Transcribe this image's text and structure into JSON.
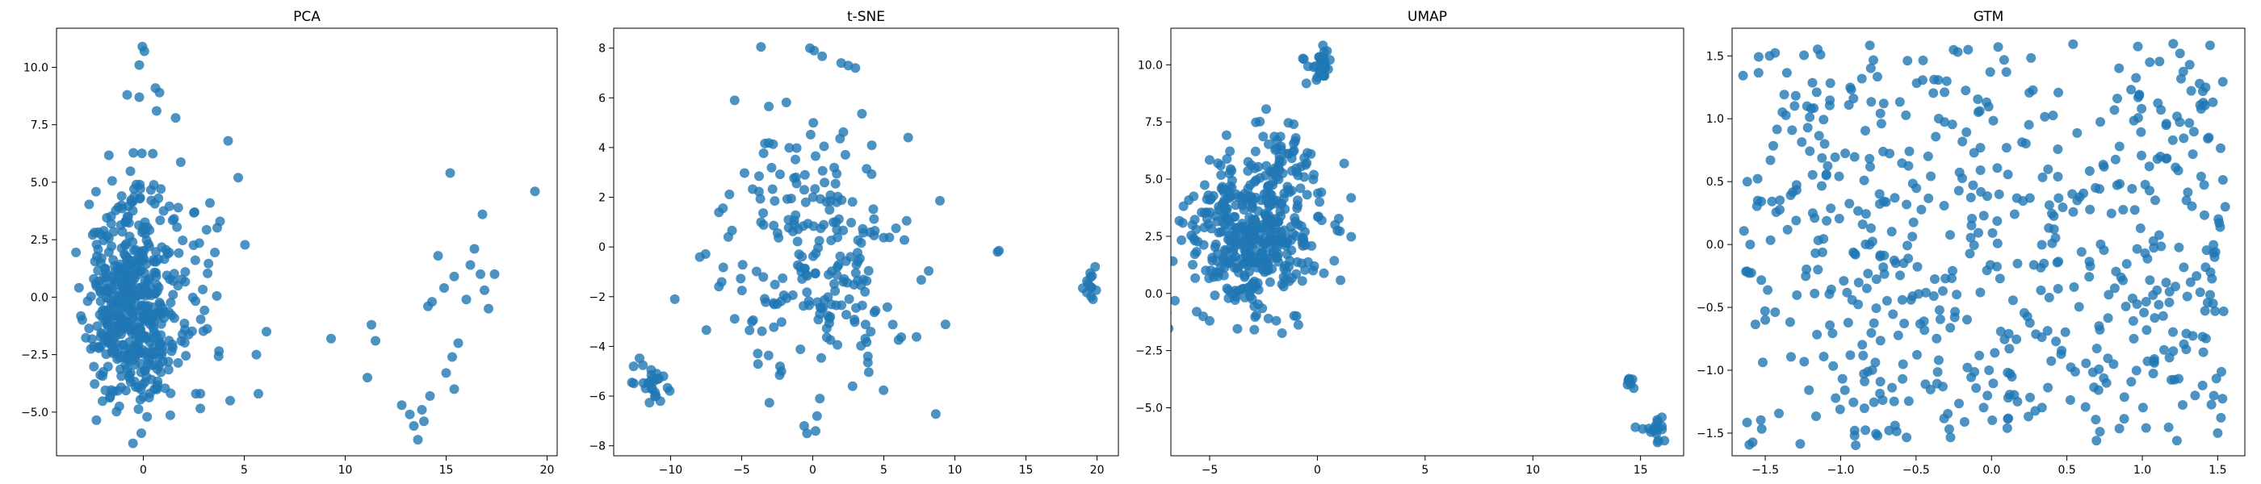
{
  "figure": {
    "point_color": "#1f77b4"
  },
  "chart_data": [
    {
      "type": "scatter",
      "title": "PCA",
      "xlabel": "",
      "ylabel": "",
      "xlim": [
        -4.3,
        20.5
      ],
      "ylim": [
        -6.9,
        11.7
      ],
      "xticks": [
        0,
        5,
        10,
        15,
        20
      ],
      "yticks": [
        -5.0,
        -2.5,
        0.0,
        2.5,
        5.0,
        7.5,
        10.0
      ],
      "xtick_labels": [
        "0",
        "5",
        "10",
        "15",
        "20"
      ],
      "ytick_labels": [
        "−5.0",
        "−2.5",
        "0.0",
        "2.5",
        "5.0",
        "7.5",
        "10.0"
      ],
      "grid": false,
      "clusters": [
        {
          "seed": 11,
          "n": 220,
          "cx": -1.2,
          "cy": -0.8,
          "sx": 0.8,
          "sy": 1.6
        },
        {
          "seed": 12,
          "n": 150,
          "cx": -0.4,
          "cy": 2.0,
          "sx": 1.0,
          "sy": 1.8
        },
        {
          "seed": 13,
          "n": 120,
          "cx": 0.0,
          "cy": -2.2,
          "sx": 1.1,
          "sy": 1.5
        },
        {
          "seed": 14,
          "n": 40,
          "cx": 2.2,
          "cy": 0.8,
          "sx": 1.3,
          "sy": 2.2
        }
      ],
      "points": [
        [
          -0.05,
          10.9
        ],
        [
          0.05,
          10.7
        ],
        [
          -0.2,
          10.1
        ],
        [
          0.6,
          9.1
        ],
        [
          0.8,
          8.9
        ],
        [
          -0.8,
          8.8
        ],
        [
          -0.2,
          8.7
        ],
        [
          1.6,
          7.8
        ],
        [
          4.2,
          6.8
        ],
        [
          4.7,
          5.2
        ],
        [
          3.3,
          4.1
        ],
        [
          3.8,
          3.3
        ],
        [
          6.1,
          -1.5
        ],
        [
          5.6,
          -2.5
        ],
        [
          5.7,
          -4.2
        ],
        [
          4.3,
          -4.5
        ],
        [
          2.6,
          -4.2
        ],
        [
          9.3,
          -1.8
        ],
        [
          11.3,
          -1.2
        ],
        [
          11.5,
          -1.9
        ],
        [
          11.1,
          -3.5
        ],
        [
          12.8,
          -4.7
        ],
        [
          13.2,
          -5.1
        ],
        [
          13.4,
          -5.6
        ],
        [
          13.6,
          -6.2
        ],
        [
          13.9,
          -5.4
        ],
        [
          14.2,
          -4.3
        ],
        [
          13.8,
          -4.9
        ],
        [
          14.1,
          -0.4
        ],
        [
          14.3,
          -0.2
        ],
        [
          14.6,
          1.8
        ],
        [
          14.9,
          0.4
        ],
        [
          15.2,
          5.4
        ],
        [
          15.4,
          0.9
        ],
        [
          15.6,
          -2.0
        ],
        [
          15.3,
          -2.6
        ],
        [
          15.0,
          -3.3
        ],
        [
          15.4,
          -4.0
        ],
        [
          16.0,
          -0.1
        ],
        [
          16.2,
          1.4
        ],
        [
          16.4,
          2.1
        ],
        [
          16.7,
          1.0
        ],
        [
          16.8,
          3.6
        ],
        [
          16.9,
          0.3
        ],
        [
          17.1,
          -0.5
        ],
        [
          17.4,
          1.0
        ],
        [
          19.4,
          4.6
        ]
      ]
    },
    {
      "type": "scatter",
      "title": "t-SNE",
      "xlabel": "",
      "ylabel": "",
      "xlim": [
        -14.0,
        21.5
      ],
      "ylim": [
        -8.4,
        8.8
      ],
      "xticks": [
        -10,
        -5,
        0,
        5,
        10,
        15,
        20
      ],
      "yticks": [
        -8,
        -6,
        -4,
        -2,
        0,
        2,
        4,
        6,
        8
      ],
      "xtick_labels": [
        "−10",
        "−5",
        "0",
        "5",
        "10",
        "15",
        "20"
      ],
      "ytick_labels": [
        "−8",
        "−6",
        "−4",
        "−2",
        "0",
        "2",
        "4",
        "6",
        "8"
      ],
      "grid": false,
      "clusters": [
        {
          "seed": 21,
          "n": 180,
          "cx": 0.0,
          "cy": 0.4,
          "sx": 3.5,
          "sy": 2.9
        },
        {
          "seed": 22,
          "n": 50,
          "cx": 1.5,
          "cy": -1.8,
          "sx": 2.5,
          "sy": 1.4
        },
        {
          "seed": 23,
          "n": 24,
          "cx": -11.6,
          "cy": -5.5,
          "sx": 0.7,
          "sy": 0.5
        },
        {
          "seed": 24,
          "n": 14,
          "cx": 19.5,
          "cy": -1.4,
          "sx": 0.25,
          "sy": 0.45
        }
      ],
      "points": [
        [
          -0.2,
          8.0
        ],
        [
          0.1,
          7.9
        ],
        [
          2.0,
          7.4
        ],
        [
          2.5,
          7.3
        ],
        [
          3.0,
          7.2
        ],
        [
          -0.6,
          -7.2
        ],
        [
          -0.4,
          -7.5
        ],
        [
          0.2,
          -7.4
        ],
        [
          0.3,
          -6.8
        ],
        [
          0.5,
          -6.1
        ],
        [
          2.8,
          -5.6
        ],
        [
          -2.3,
          -4.8
        ],
        [
          -2.2,
          -5.0
        ],
        [
          -9.7,
          -2.1
        ],
        [
          13.0,
          -0.2
        ],
        [
          13.1,
          -0.15
        ],
        [
          -12.6,
          -4.8
        ],
        [
          -10.5,
          -5.2
        ]
      ]
    },
    {
      "type": "scatter",
      "title": "UMAP",
      "xlabel": "",
      "ylabel": "",
      "xlim": [
        -6.8,
        17.0
      ],
      "ylim": [
        -7.1,
        11.6
      ],
      "xticks": [
        -5,
        0,
        5,
        10,
        15
      ],
      "yticks": [
        -5.0,
        -2.5,
        0.0,
        2.5,
        5.0,
        7.5,
        10.0
      ],
      "xtick_labels": [
        "−5",
        "0",
        "5",
        "10",
        "15"
      ],
      "ytick_labels": [
        "−5.0",
        "−2.5",
        "0.0",
        "2.5",
        "5.0",
        "7.5",
        "10.0"
      ],
      "grid": false,
      "clusters": [
        {
          "seed": 31,
          "n": 420,
          "cx": -2.9,
          "cy": 2.6,
          "sx": 1.55,
          "sy": 1.75
        },
        {
          "seed": 32,
          "n": 40,
          "cx": -1.4,
          "cy": 5.8,
          "sx": 0.8,
          "sy": 0.7
        },
        {
          "seed": 33,
          "n": 30,
          "cx": 0.1,
          "cy": 10.0,
          "sx": 0.35,
          "sy": 0.35
        },
        {
          "seed": 34,
          "n": 8,
          "cx": 14.5,
          "cy": -3.8,
          "sx": 0.1,
          "sy": 0.12
        },
        {
          "seed": 35,
          "n": 18,
          "cx": 15.7,
          "cy": -6.0,
          "sx": 0.3,
          "sy": 0.25
        }
      ],
      "points": [
        [
          -5.8,
          3.0
        ],
        [
          -5.6,
          -0.8
        ],
        [
          -5.3,
          -1.0
        ],
        [
          -5.0,
          -1.2
        ],
        [
          0.2,
          3.2
        ],
        [
          0.1,
          4.0
        ],
        [
          -0.2,
          1.0
        ],
        [
          -1.0,
          6.8
        ],
        [
          -1.1,
          7.4
        ],
        [
          -0.3,
          6.1
        ]
      ]
    },
    {
      "type": "scatter",
      "title": "GTM",
      "xlabel": "",
      "ylabel": "",
      "xlim": [
        -1.72,
        1.68
      ],
      "ylim": [
        -1.68,
        1.72
      ],
      "xticks": [
        -1.5,
        -1.0,
        -0.5,
        0.0,
        0.5,
        1.0,
        1.5
      ],
      "yticks": [
        -1.5,
        -1.0,
        -0.5,
        0.0,
        0.5,
        1.0,
        1.5
      ],
      "xtick_labels": [
        "−1.5",
        "−1.0",
        "−0.5",
        "0.0",
        "0.5",
        "1.0",
        "1.5"
      ],
      "ytick_labels": [
        "−1.5",
        "−1.0",
        "−0.5",
        "0.0",
        "0.5",
        "1.0",
        "1.5"
      ],
      "grid": false,
      "clusters": [
        {
          "seed": 41,
          "n": 520,
          "cx": -0.05,
          "cy": 0.0,
          "sx": 1.6,
          "sy": 1.6,
          "dist": "uniform"
        },
        {
          "seed": 42,
          "n": 60,
          "cx": -0.1,
          "cy": -0.35,
          "sx": 1.2,
          "sy": 0.9,
          "dist": "uniform"
        }
      ],
      "points": [
        [
          1.55,
          0.3
        ],
        [
          1.25,
          1.52
        ],
        [
          1.38,
          1.28
        ],
        [
          1.42,
          1.25
        ],
        [
          1.48,
          -0.1
        ],
        [
          1.45,
          -0.4
        ],
        [
          1.32,
          -0.3
        ],
        [
          1.36,
          -0.25
        ],
        [
          1.42,
          -0.18
        ],
        [
          1.5,
          -1.5
        ],
        [
          1.35,
          -1.2
        ],
        [
          1.05,
          1.45
        ],
        [
          1.1,
          0.68
        ],
        [
          1.12,
          0.7
        ],
        [
          1.18,
          -0.9
        ],
        [
          -1.55,
          0.35
        ],
        [
          -1.6,
          0.0
        ],
        [
          -1.5,
          -0.6
        ]
      ]
    }
  ]
}
